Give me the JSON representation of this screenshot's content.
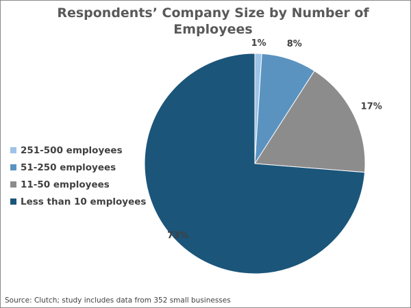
{
  "chart_data": {
    "type": "pie",
    "title": "Respondents’ Company Size by Number of Employees",
    "categories": [
      "251-500 employees",
      "51-250 employees",
      "11-50 employees",
      "Less than 10 employees"
    ],
    "values": [
      1,
      8,
      17,
      73
    ],
    "data_labels": [
      "1%",
      "8%",
      "17%",
      "73%"
    ],
    "colors": [
      "#9DC3E6",
      "#5B93C0",
      "#8C8C8C",
      "#1B557A"
    ],
    "start": "top, clockwise",
    "legend_position": "left"
  },
  "source": "Source: Clutch; study includes data from 352 small businesses"
}
